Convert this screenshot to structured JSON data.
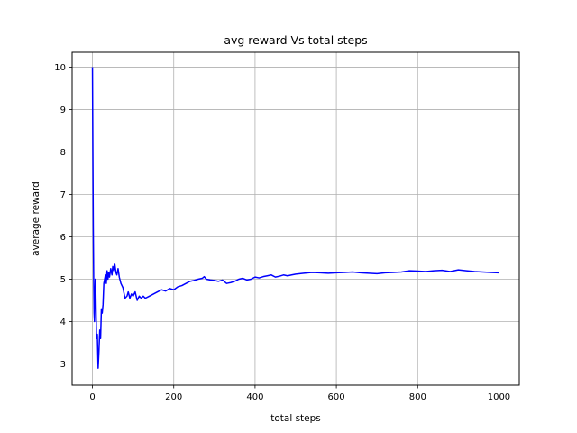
{
  "chart_data": {
    "type": "line",
    "title": "avg reward Vs total steps",
    "xlabel": "total steps",
    "ylabel": "average reward",
    "xlim": [
      -50,
      1050
    ],
    "ylim": [
      2.5,
      10.35
    ],
    "xticks": [
      0,
      200,
      400,
      600,
      800,
      1000
    ],
    "yticks": [
      3,
      4,
      5,
      6,
      7,
      8,
      9,
      10
    ],
    "xtick_labels": [
      "0",
      "200",
      "400",
      "600",
      "800",
      "1000"
    ],
    "ytick_labels": [
      "3",
      "4",
      "5",
      "6",
      "7",
      "8",
      "9",
      "10"
    ],
    "grid": true,
    "series": [
      {
        "color": "#0000ff",
        "x": [
          0,
          1,
          2,
          3,
          4,
          5,
          6,
          7,
          8,
          10,
          12,
          14,
          16,
          18,
          20,
          22,
          24,
          26,
          28,
          30,
          32,
          34,
          36,
          38,
          40,
          42,
          45,
          48,
          50,
          53,
          55,
          58,
          60,
          63,
          66,
          70,
          75,
          80,
          85,
          88,
          92,
          96,
          100,
          105,
          110,
          115,
          120,
          125,
          130,
          140,
          150,
          160,
          170,
          180,
          190,
          200,
          210,
          220,
          230,
          240,
          250,
          260,
          270,
          275,
          280,
          290,
          300,
          310,
          320,
          330,
          340,
          350,
          360,
          370,
          380,
          390,
          400,
          410,
          420,
          430,
          440,
          450,
          460,
          470,
          480,
          490,
          500,
          520,
          540,
          560,
          580,
          600,
          620,
          640,
          660,
          680,
          700,
          720,
          740,
          760,
          780,
          800,
          820,
          840,
          860,
          880,
          900,
          920,
          940,
          960,
          980,
          1000
        ],
        "y": [
          10.0,
          8.0,
          6.2,
          5.0,
          4.2,
          4.0,
          4.6,
          5.0,
          4.8,
          3.6,
          3.7,
          2.9,
          3.3,
          3.8,
          3.6,
          4.3,
          4.2,
          4.4,
          4.9,
          5.0,
          5.1,
          4.9,
          5.2,
          5.0,
          5.15,
          5.05,
          5.25,
          5.1,
          5.3,
          5.2,
          5.35,
          5.15,
          5.1,
          5.25,
          5.05,
          4.9,
          4.8,
          4.55,
          4.6,
          4.7,
          4.55,
          4.65,
          4.6,
          4.7,
          4.5,
          4.6,
          4.55,
          4.6,
          4.55,
          4.6,
          4.65,
          4.7,
          4.75,
          4.72,
          4.78,
          4.75,
          4.82,
          4.85,
          4.9,
          4.95,
          4.97,
          5.0,
          5.02,
          5.06,
          5.0,
          4.98,
          4.97,
          4.95,
          4.98,
          4.9,
          4.92,
          4.95,
          5.0,
          5.02,
          4.98,
          5.0,
          5.05,
          5.03,
          5.06,
          5.08,
          5.1,
          5.05,
          5.07,
          5.1,
          5.08,
          5.1,
          5.12,
          5.14,
          5.16,
          5.15,
          5.14,
          5.15,
          5.16,
          5.17,
          5.15,
          5.14,
          5.13,
          5.15,
          5.16,
          5.17,
          5.2,
          5.19,
          5.18,
          5.2,
          5.21,
          5.18,
          5.22,
          5.2,
          5.18,
          5.17,
          5.16,
          5.15
        ]
      }
    ]
  }
}
